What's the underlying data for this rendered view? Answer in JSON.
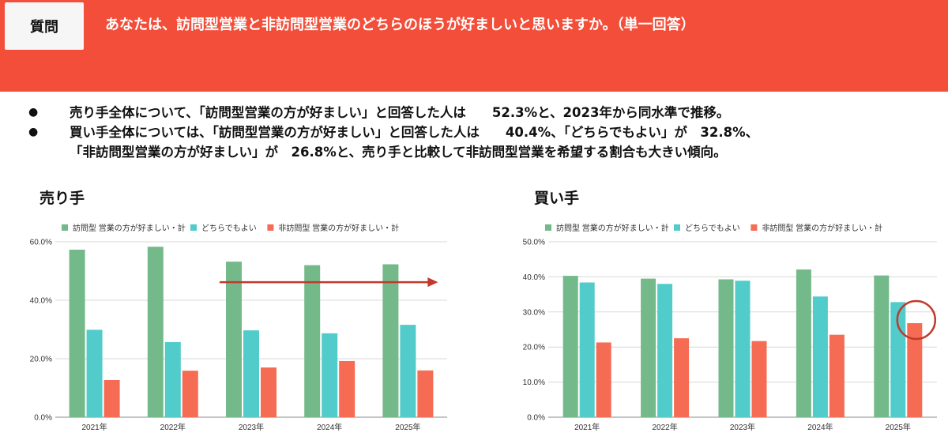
{
  "header": {
    "badge": "質問",
    "question": "あなたは、訪問型営業と非訪問型営業のどちらのほうが好ましいと思いますか。（単一回答）"
  },
  "summary": {
    "bullet_symbol": "●",
    "line1": "売り手全体について、「訪問型営業の方が好ましい」と回答した人は　　52.3%と、2023年から同水準で推移。",
    "line2": "買い手全体については、「訪問型営業の方が好ましい」と回答した人は　　40.4%、「どちらでもよい」が　32.8%、",
    "line3": "「非訪問型営業の方が好ましい」が　26.8%と、売り手と比較して非訪問型営業を希望する割合も大きい傾向。"
  },
  "colors": {
    "visit": "#74b98a",
    "either": "#52cbcb",
    "nonvisit": "#f56b53",
    "arrow": "#c0392b",
    "circle": "#c0392b",
    "header_bg": "#f24e3a"
  },
  "chart_data": [
    {
      "type": "bar",
      "title": "売り手",
      "categories": [
        "2021年",
        "2022年",
        "2023年",
        "2024年",
        "2025年"
      ],
      "series": [
        {
          "name": "訪問型 営業の方が好ましい・計",
          "values": [
            57.3,
            58.3,
            53.2,
            52.0,
            52.3
          ]
        },
        {
          "name": "どちらでもよい",
          "values": [
            29.9,
            25.7,
            29.7,
            28.7,
            31.6
          ]
        },
        {
          "name": "非訪問型 営業の方が好ましい・計",
          "values": [
            12.7,
            15.9,
            17.0,
            19.2,
            16.0
          ]
        }
      ],
      "ylim": [
        0,
        60
      ],
      "yticks": [
        "0.0%",
        "20.0%",
        "40.0%",
        "60.0%"
      ],
      "ytick_values": [
        0,
        20,
        40,
        60
      ],
      "legend": "top",
      "annotation": "trend arrow from 2023 to 2025 over the 訪問型 bars"
    },
    {
      "type": "bar",
      "title": "買い手",
      "categories": [
        "2021年",
        "2022年",
        "2023年",
        "2024年",
        "2025年"
      ],
      "series": [
        {
          "name": "訪問型 営業の方が好ましい・計",
          "values": [
            40.3,
            39.5,
            39.3,
            42.1,
            40.4
          ]
        },
        {
          "name": "どちらでもよい",
          "values": [
            38.4,
            38.0,
            38.9,
            34.4,
            32.8
          ]
        },
        {
          "name": "非訪問型 営業の方が好ましい・計",
          "values": [
            21.3,
            22.5,
            21.7,
            23.5,
            26.8
          ]
        }
      ],
      "ylim": [
        0,
        50
      ],
      "yticks": [
        "0.0%",
        "10.0%",
        "20.0%",
        "30.0%",
        "40.0%",
        "50.0%"
      ],
      "ytick_values": [
        0,
        10,
        20,
        30,
        40,
        50
      ],
      "legend": "top",
      "annotation": "circle highlighting 2025 非訪問型 bar"
    }
  ]
}
